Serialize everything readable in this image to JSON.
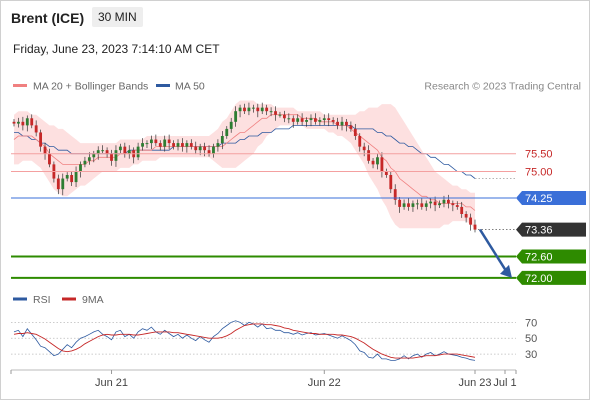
{
  "header": {
    "instrument": "Brent (ICE)",
    "timeframe": "30 MIN",
    "datetime": "Friday, June 23, 2023 7:14:10 AM CET"
  },
  "legend": {
    "ma20": "MA 20 + Bollinger Bands",
    "ma50": "MA 50",
    "credit": "Research © 2023 Trading Central"
  },
  "rsi_legend": {
    "rsi": "RSI",
    "ma": "9MA"
  },
  "colors": {
    "ma20": "#f08080",
    "ma50": "#2e5aa0",
    "band_fill": "#fde0e0",
    "up": "#2e7d32",
    "down": "#c62828",
    "support": "#2e8b00",
    "pivot": "#3a6fd8",
    "resistance": "#f4a0a0",
    "arrow": "#2e5aa0"
  },
  "chart_data": {
    "type": "candlestick",
    "x_ticks": [
      "Jun 21",
      "Jun 22",
      "Jun 23",
      "Jul 1"
    ],
    "price_ylim": [
      71.6,
      77.1
    ],
    "levels": [
      {
        "value": 75.5,
        "label": "75.50",
        "kind": "resistance"
      },
      {
        "value": 75.0,
        "label": "75.00",
        "kind": "resistance"
      },
      {
        "value": 74.25,
        "label": "74.25",
        "kind": "pivot"
      },
      {
        "value": 73.36,
        "label": "73.36",
        "kind": "last"
      },
      {
        "value": 72.6,
        "label": "72.60",
        "kind": "support"
      },
      {
        "value": 72.0,
        "label": "72.00",
        "kind": "support"
      }
    ],
    "close": [
      76.35,
      76.4,
      76.3,
      76.5,
      76.3,
      76.1,
      75.7,
      75.5,
      75.2,
      74.8,
      74.5,
      74.8,
      74.9,
      74.7,
      75.0,
      75.2,
      75.3,
      75.4,
      75.5,
      75.6,
      75.6,
      75.5,
      75.3,
      75.6,
      75.7,
      75.5,
      75.6,
      75.4,
      75.7,
      75.8,
      75.8,
      75.9,
      75.8,
      75.7,
      75.9,
      75.8,
      75.7,
      75.8,
      75.7,
      75.8,
      75.7,
      75.6,
      75.7,
      75.6,
      75.5,
      75.7,
      75.8,
      76.0,
      76.2,
      76.4,
      76.7,
      76.8,
      76.7,
      76.8,
      76.8,
      76.7,
      76.8,
      76.7,
      76.7,
      76.6,
      76.6,
      76.5,
      76.5,
      76.4,
      76.5,
      76.4,
      76.45,
      76.5,
      76.4,
      76.45,
      76.5,
      76.45,
      76.4,
      76.3,
      76.4,
      76.3,
      76.2,
      76.0,
      75.7,
      75.6,
      75.3,
      75.2,
      75.4,
      75.0,
      74.9,
      74.5,
      74.2,
      74.0,
      74.1,
      74.0,
      74.1,
      74.1,
      74.0,
      74.1,
      74.15,
      74.05,
      74.1,
      74.2,
      74.1,
      74.05,
      74.0,
      73.8,
      73.7,
      73.5,
      73.36
    ],
    "ma20": [
      75.9,
      76.0,
      76.0,
      76.0,
      76.0,
      75.9,
      75.8,
      75.7,
      75.5,
      75.4,
      75.3,
      75.2,
      75.2,
      75.2,
      75.2,
      75.2,
      75.2,
      75.3,
      75.3,
      75.4,
      75.4,
      75.4,
      75.4,
      75.4,
      75.5,
      75.5,
      75.5,
      75.6,
      75.6,
      75.6,
      75.6,
      75.6,
      75.7,
      75.7,
      75.7,
      75.7,
      75.7,
      75.7,
      75.7,
      75.7,
      75.7,
      75.7,
      75.7,
      75.7,
      75.7,
      75.7,
      75.7,
      75.7,
      75.8,
      75.9,
      76.0,
      76.1,
      76.1,
      76.2,
      76.3,
      76.4,
      76.5,
      76.5,
      76.6,
      76.6,
      76.6,
      76.6,
      76.6,
      76.6,
      76.6,
      76.5,
      76.5,
      76.5,
      76.5,
      76.4,
      76.4,
      76.4,
      76.4,
      76.3,
      76.3,
      76.3,
      76.2,
      76.1,
      76.0,
      75.9,
      75.8,
      75.7,
      75.6,
      75.4,
      75.3,
      75.1,
      75.0,
      74.8,
      74.7,
      74.6,
      74.5,
      74.4,
      74.3,
      74.3,
      74.2,
      74.2,
      74.1,
      74.1,
      74.1,
      74.1,
      74.1,
      74.1,
      74.0,
      74.0,
      73.9
    ],
    "bb_upper": [
      76.6,
      76.7,
      76.7,
      76.7,
      76.6,
      76.6,
      76.5,
      76.4,
      76.3,
      76.3,
      76.2,
      76.2,
      76.1,
      76.0,
      75.9,
      75.8,
      75.8,
      75.8,
      75.8,
      75.8,
      75.8,
      75.8,
      75.8,
      75.8,
      75.9,
      75.9,
      75.9,
      75.9,
      75.9,
      75.9,
      76.0,
      76.0,
      76.0,
      76.0,
      76.0,
      76.0,
      76.0,
      76.0,
      76.0,
      76.0,
      76.0,
      76.0,
      76.0,
      76.0,
      76.0,
      76.1,
      76.2,
      76.4,
      76.5,
      76.7,
      76.9,
      77.0,
      77.0,
      77.0,
      77.0,
      76.9,
      76.9,
      76.9,
      76.9,
      76.8,
      76.8,
      76.8,
      76.8,
      76.8,
      76.7,
      76.7,
      76.7,
      76.7,
      76.7,
      76.7,
      76.6,
      76.6,
      76.6,
      76.6,
      76.6,
      76.6,
      76.6,
      76.6,
      76.7,
      76.7,
      76.8,
      76.8,
      76.8,
      76.9,
      76.9,
      76.9,
      76.8,
      76.6,
      76.4,
      76.2,
      76.0,
      75.8,
      75.6,
      75.4,
      75.2,
      75.0,
      74.9,
      74.8,
      74.7,
      74.6,
      74.6,
      74.5,
      74.5,
      74.4,
      74.4
    ],
    "bb_lower": [
      75.2,
      75.2,
      75.3,
      75.3,
      75.3,
      75.2,
      75.1,
      74.9,
      74.7,
      74.5,
      74.4,
      74.3,
      74.3,
      74.4,
      74.5,
      74.6,
      74.6,
      74.7,
      74.8,
      74.9,
      75.0,
      75.0,
      75.0,
      75.0,
      75.1,
      75.1,
      75.1,
      75.2,
      75.2,
      75.3,
      75.3,
      75.3,
      75.3,
      75.4,
      75.4,
      75.4,
      75.4,
      75.4,
      75.4,
      75.4,
      75.4,
      75.4,
      75.4,
      75.4,
      75.4,
      75.3,
      75.2,
      75.1,
      75.1,
      75.1,
      75.1,
      75.2,
      75.3,
      75.4,
      75.5,
      75.7,
      75.8,
      76.0,
      76.1,
      76.2,
      76.3,
      76.3,
      76.3,
      76.3,
      76.3,
      76.3,
      76.2,
      76.2,
      76.2,
      76.2,
      76.2,
      76.1,
      76.1,
      76.0,
      76.0,
      75.9,
      75.8,
      75.6,
      75.4,
      75.2,
      74.9,
      74.7,
      74.5,
      74.2,
      74.0,
      73.7,
      73.5,
      73.4,
      73.4,
      73.4,
      73.4,
      73.4,
      73.4,
      73.4,
      73.4,
      73.4,
      73.4,
      73.5,
      73.5,
      73.6,
      73.6,
      73.6,
      73.6,
      73.5,
      73.4
    ],
    "ma50": [
      76.1,
      76.1,
      76.0,
      76.0,
      75.9,
      75.9,
      75.8,
      75.8,
      75.7,
      75.7,
      75.6,
      75.6,
      75.6,
      75.5,
      75.5,
      75.5,
      75.5,
      75.5,
      75.5,
      75.5,
      75.5,
      75.5,
      75.5,
      75.5,
      75.5,
      75.5,
      75.6,
      75.6,
      75.6,
      75.6,
      75.6,
      75.6,
      75.6,
      75.6,
      75.6,
      75.6,
      75.7,
      75.7,
      75.7,
      75.7,
      75.7,
      75.7,
      75.7,
      75.7,
      75.7,
      75.7,
      75.7,
      75.8,
      75.8,
      75.8,
      75.8,
      75.9,
      75.9,
      76.0,
      76.0,
      76.0,
      76.1,
      76.1,
      76.1,
      76.2,
      76.2,
      76.2,
      76.2,
      76.3,
      76.3,
      76.3,
      76.3,
      76.3,
      76.3,
      76.3,
      76.3,
      76.3,
      76.3,
      76.3,
      76.3,
      76.3,
      76.3,
      76.2,
      76.2,
      76.2,
      76.2,
      76.2,
      76.1,
      76.1,
      76.0,
      76.0,
      75.9,
      75.8,
      75.8,
      75.7,
      75.7,
      75.6,
      75.5,
      75.5,
      75.4,
      75.4,
      75.3,
      75.2,
      75.2,
      75.1,
      75.0,
      75.0,
      74.9,
      74.9,
      74.8
    ],
    "rsi_yticks": [
      70,
      50,
      30
    ],
    "rsi_ylim": [
      15,
      78
    ],
    "rsi": [
      58,
      60,
      52,
      62,
      55,
      48,
      40,
      38,
      33,
      28,
      30,
      36,
      42,
      38,
      45,
      50,
      52,
      55,
      58,
      60,
      55,
      52,
      48,
      58,
      60,
      52,
      55,
      50,
      58,
      62,
      60,
      64,
      58,
      55,
      60,
      56,
      52,
      55,
      50,
      54,
      50,
      47,
      52,
      48,
      45,
      52,
      56,
      62,
      66,
      70,
      72,
      70,
      66,
      70,
      68,
      64,
      68,
      62,
      63,
      60,
      60,
      57,
      57,
      55,
      57,
      54,
      56,
      57,
      54,
      55,
      56,
      54,
      52,
      50,
      53,
      50,
      47,
      42,
      34,
      32,
      26,
      25,
      30,
      24,
      24,
      22,
      22,
      24,
      28,
      24,
      28,
      30,
      26,
      30,
      32,
      28,
      30,
      33,
      30,
      29,
      28,
      26,
      25,
      23,
      22
    ],
    "rsi_ma": [
      55,
      56,
      56,
      57,
      56,
      55,
      52,
      49,
      45,
      41,
      37,
      34,
      33,
      34,
      36,
      39,
      43,
      46,
      49,
      52,
      54,
      55,
      54,
      54,
      55,
      55,
      55,
      54,
      54,
      55,
      56,
      57,
      58,
      58,
      58,
      58,
      57,
      57,
      56,
      55,
      54,
      53,
      52,
      51,
      50,
      50,
      50,
      51,
      53,
      56,
      60,
      63,
      66,
      67,
      68,
      68,
      68,
      67,
      67,
      66,
      65,
      63,
      62,
      60,
      59,
      58,
      57,
      56,
      56,
      55,
      55,
      55,
      55,
      54,
      54,
      53,
      52,
      50,
      47,
      44,
      40,
      36,
      33,
      30,
      28,
      26,
      25,
      25,
      25,
      25,
      25,
      26,
      27,
      28,
      28,
      28,
      29,
      30,
      30,
      30,
      30,
      29,
      28,
      27,
      26
    ]
  }
}
